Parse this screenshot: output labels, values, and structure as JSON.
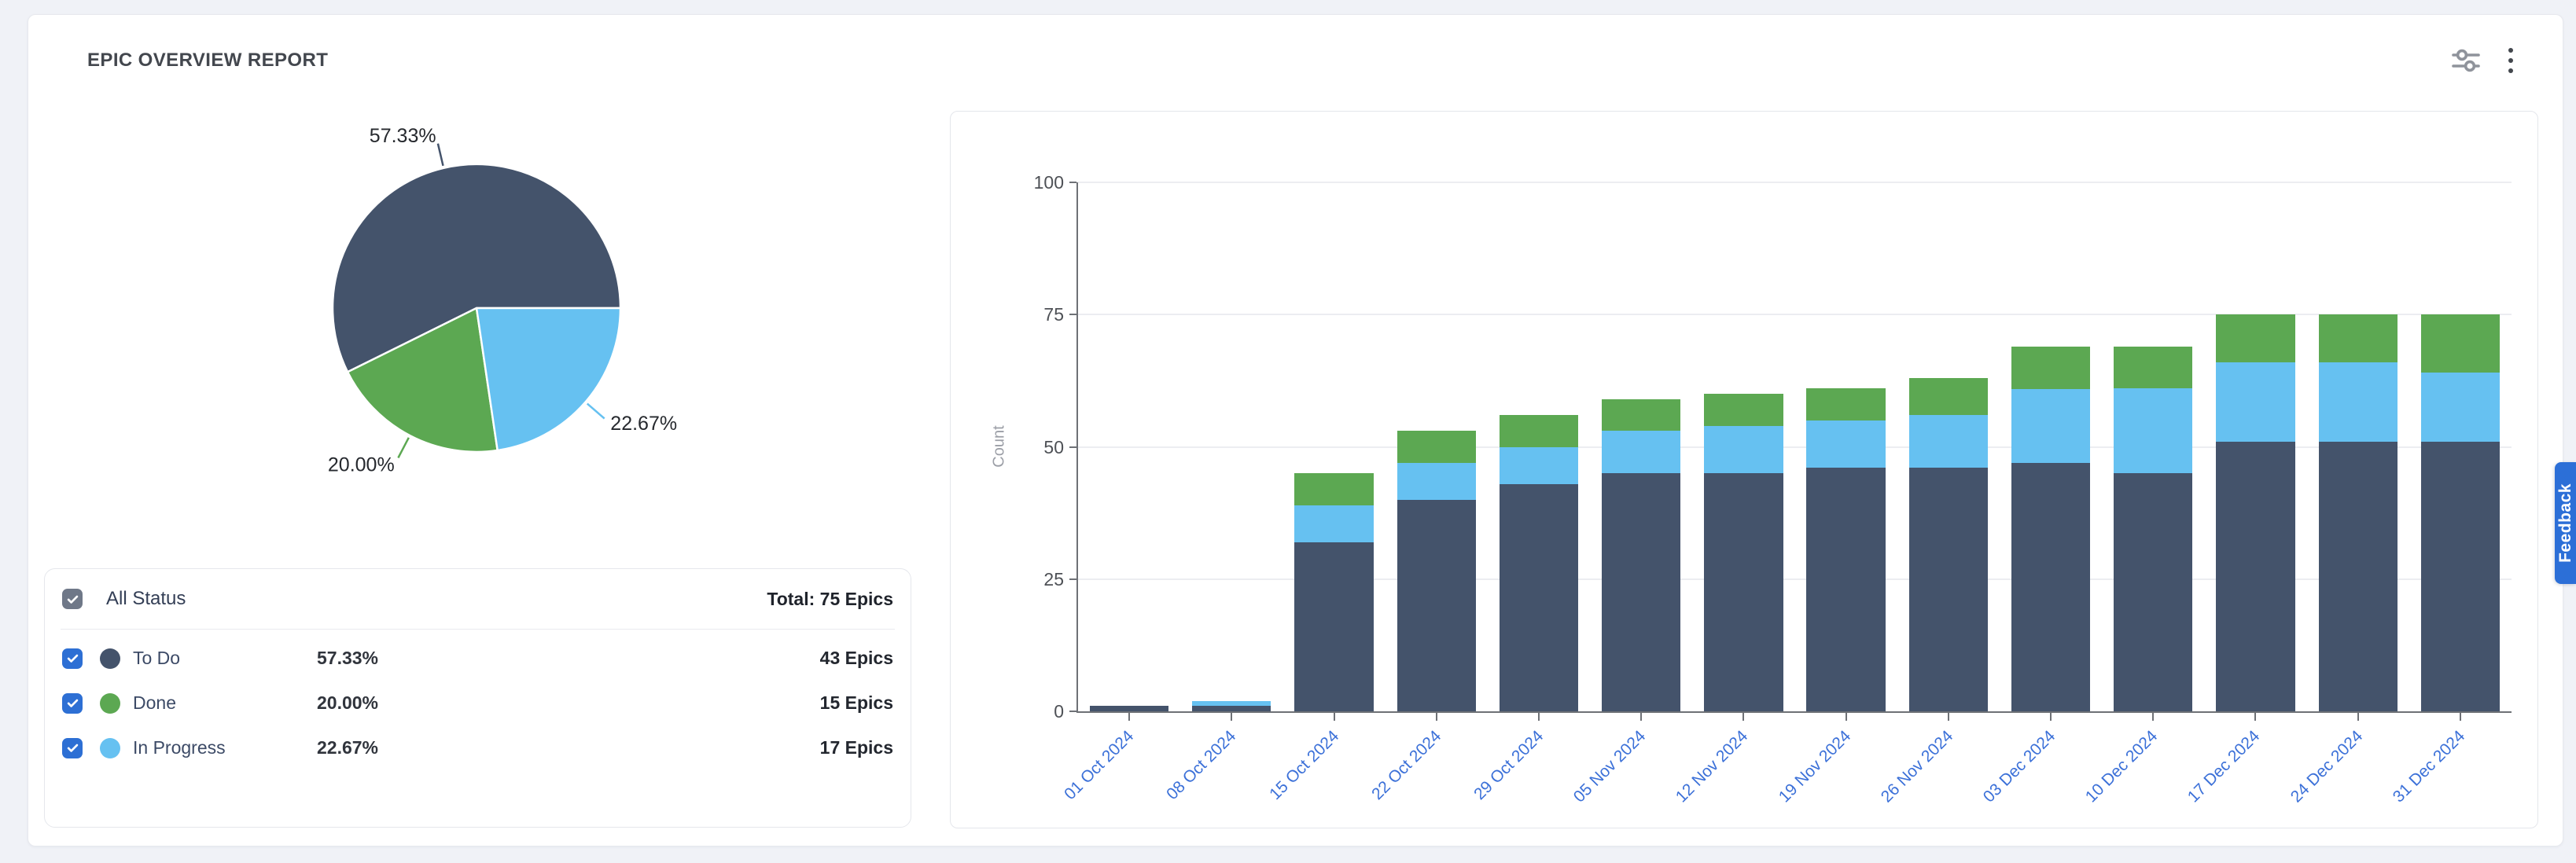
{
  "page": {
    "background": "#F0F2F7"
  },
  "widget": {
    "title": "EPIC OVERVIEW REPORT",
    "toolbar": {
      "filter_icon": "tune-sliders-icon",
      "menu_icon": "kebab-menu-icon"
    }
  },
  "colors": {
    "to_do": "#44536B",
    "done": "#5CA852",
    "in_progress": "#66C1F1",
    "checkbox_blue": "#2D6FD4",
    "checkbox_gray": "#6F7888",
    "axis_text_blue": "#3B70D8",
    "feedback_blue": "#2C6FD7",
    "grid_line": "#ECEDF1",
    "axis_line": "#6E7176"
  },
  "legend": {
    "all_status": {
      "label": "All Status",
      "total": "Total: 75 Epics",
      "checked": true
    },
    "rows": [
      {
        "label": "To Do",
        "percent": "57.33%",
        "count": "43 Epics",
        "color": "#44536B",
        "checked": true
      },
      {
        "label": "Done",
        "percent": "20.00%",
        "count": "15 Epics",
        "color": "#5CA852",
        "checked": true
      },
      {
        "label": "In Progress",
        "percent": "22.67%",
        "count": "17 Epics",
        "color": "#66C1F1",
        "checked": true
      }
    ]
  },
  "feedback_button": {
    "label": "Feedback"
  },
  "chart_data": [
    {
      "type": "pie",
      "title": "Epic status distribution",
      "slices": [
        {
          "label": "To Do",
          "value": 57.33,
          "display": "57.33%",
          "count": 43,
          "color": "#44536B"
        },
        {
          "label": "Done",
          "value": 20.0,
          "display": "20.00%",
          "count": 15,
          "color": "#5CA852"
        },
        {
          "label": "In Progress",
          "value": 22.67,
          "display": "22.67%",
          "count": 17,
          "color": "#66C1F1"
        }
      ],
      "start_angle_deg": 0,
      "direction": "counterclockwise",
      "labels": "outside-with-leader-lines",
      "total": 75
    },
    {
      "type": "bar",
      "stacked": true,
      "title": "",
      "xlabel": "",
      "ylabel": "Count",
      "ylim": [
        0,
        100
      ],
      "yticks": [
        0,
        25,
        50,
        75,
        100
      ],
      "grid": true,
      "legend_position": "none",
      "x_tick_label_rotation_deg": -45,
      "categories": [
        "01 Oct 2024",
        "08 Oct 2024",
        "15 Oct 2024",
        "22 Oct 2024",
        "29 Oct 2024",
        "05 Nov 2024",
        "12 Nov 2024",
        "19 Nov 2024",
        "26 Nov 2024",
        "03 Dec 2024",
        "10 Dec 2024",
        "17 Dec 2024",
        "24 Dec 2024",
        "31 Dec 2024"
      ],
      "series": [
        {
          "name": "To Do",
          "color": "#44536B",
          "values": [
            1,
            1,
            32,
            40,
            43,
            45,
            45,
            46,
            46,
            47,
            45,
            51,
            51,
            51
          ]
        },
        {
          "name": "In Progress",
          "color": "#66C1F1",
          "values": [
            0,
            1,
            7,
            7,
            7,
            8,
            9,
            9,
            10,
            14,
            16,
            15,
            15,
            13
          ]
        },
        {
          "name": "Done",
          "color": "#5CA852",
          "values": [
            0,
            0,
            6,
            6,
            6,
            6,
            6,
            6,
            7,
            8,
            8,
            9,
            9,
            11
          ]
        }
      ]
    }
  ]
}
